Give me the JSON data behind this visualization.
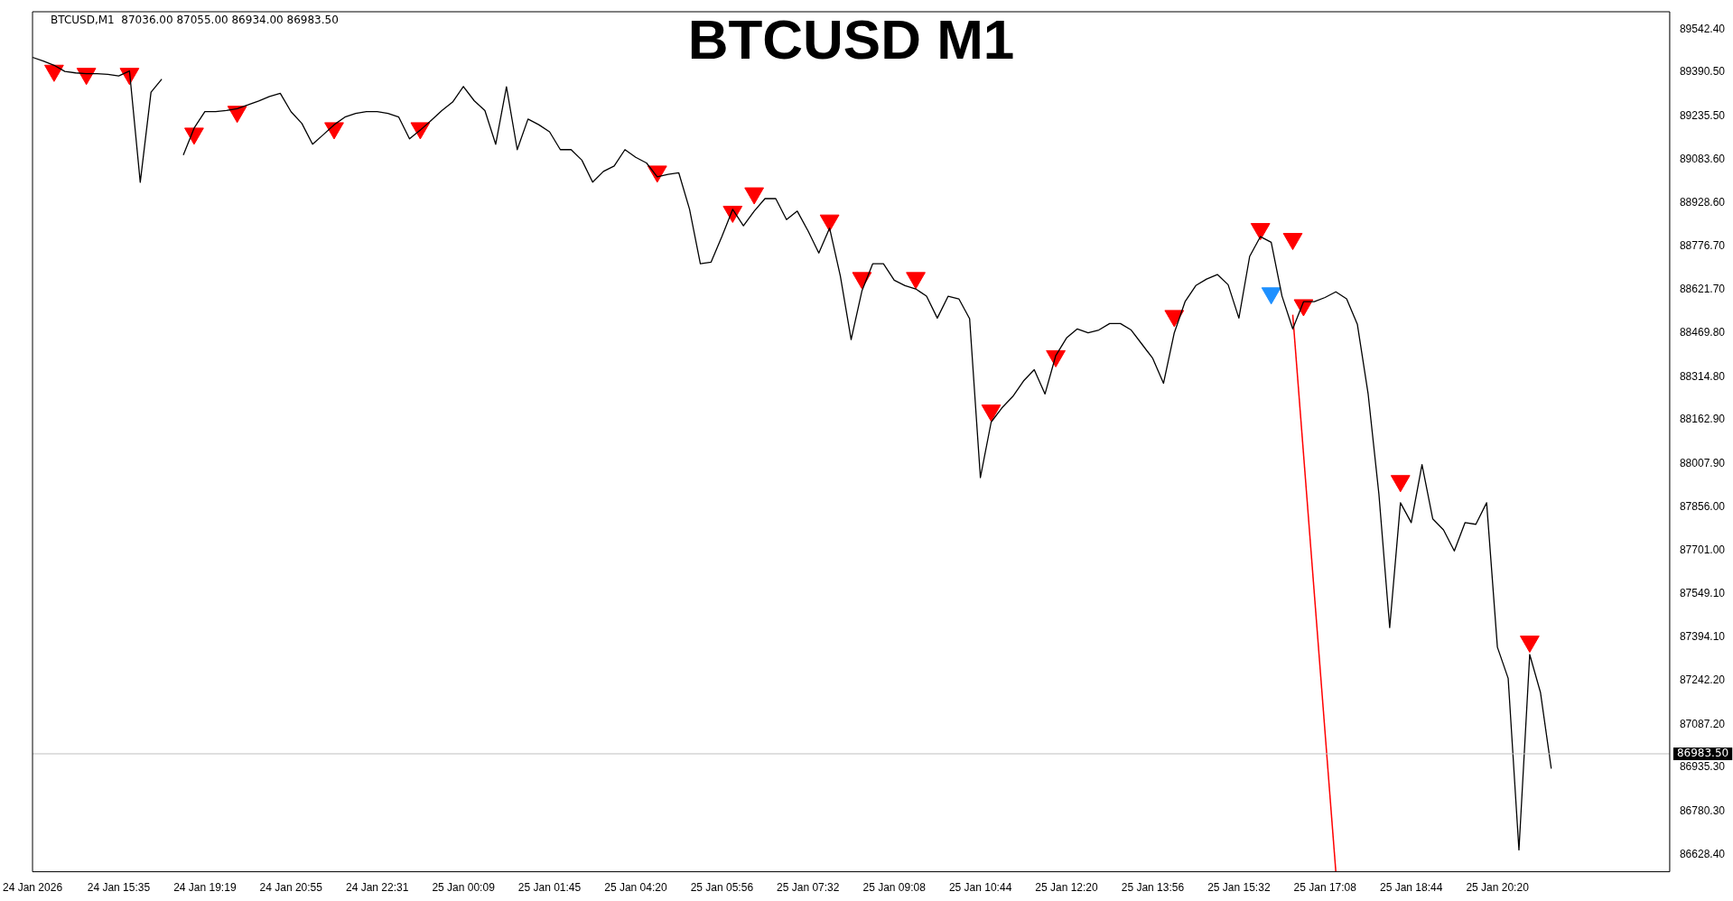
{
  "chart_data": {
    "type": "line",
    "title": "BTCUSD M1",
    "annotations": [
      "BTCUSD,M1  87036.00 87055.00 86934.00 86983.50"
    ],
    "categories": [
      "24 Jan 2026",
      null,
      null,
      null,
      null,
      null,
      null,
      null,
      "24 Jan 15:35",
      null,
      null,
      null,
      null,
      null,
      null,
      null,
      "24 Jan 19:19",
      null,
      null,
      null,
      null,
      null,
      null,
      null,
      "24 Jan 20:55",
      null,
      null,
      null,
      null,
      null,
      null,
      null,
      "24 Jan 22:31",
      null,
      null,
      null,
      null,
      null,
      null,
      null,
      "25 Jan 00:09",
      null,
      null,
      null,
      null,
      null,
      null,
      null,
      "25 Jan 01:45",
      null,
      null,
      null,
      null,
      null,
      null,
      null,
      "25 Jan 04:20",
      null,
      null,
      null,
      null,
      null,
      null,
      null,
      "25 Jan 05:56",
      null,
      null,
      null,
      null,
      null,
      null,
      null,
      "25 Jan 07:32",
      null,
      null,
      null,
      null,
      null,
      null,
      null,
      "25 Jan 09:08",
      null,
      null,
      null,
      null,
      null,
      null,
      null,
      "25 Jan 10:44",
      null,
      null,
      null,
      null,
      null,
      null,
      null,
      "25 Jan 12:20",
      null,
      null,
      null,
      null,
      null,
      null,
      null,
      "25 Jan 13:56",
      null,
      null,
      null,
      null,
      null,
      null,
      null,
      "25 Jan 15:32",
      null,
      null,
      null,
      null,
      null,
      null,
      null,
      "25 Jan 17:08",
      null,
      null,
      null,
      null,
      null,
      null,
      null,
      "25 Jan 18:44",
      null,
      null,
      null,
      null,
      null,
      null,
      null,
      "25 Jan 20:20",
      null,
      null,
      null,
      null,
      null,
      null,
      null,
      null,
      null,
      null,
      null,
      null,
      null,
      null,
      null,
      null
    ],
    "ylim": [
      86567,
      89604
    ],
    "yticks": [
      {
        "value": 89542.4,
        "label": "89542.40"
      },
      {
        "value": 89390.5,
        "label": "89390.50"
      },
      {
        "value": 89235.5,
        "label": "89235.50"
      },
      {
        "value": 89083.6,
        "label": "89083.60"
      },
      {
        "value": 88928.6,
        "label": "88928.60"
      },
      {
        "value": 88776.7,
        "label": "88776.70"
      },
      {
        "value": 88621.7,
        "label": "88621.70"
      },
      {
        "value": 88469.8,
        "label": "88469.80"
      },
      {
        "value": 88314.8,
        "label": "88314.80"
      },
      {
        "value": 88162.9,
        "label": "88162.90"
      },
      {
        "value": 88007.9,
        "label": "88007.90"
      },
      {
        "value": 87856,
        "label": "87856.00"
      },
      {
        "value": 87701,
        "label": "87701.00"
      },
      {
        "value": 87549.1,
        "label": "87549.10"
      },
      {
        "value": 87394.1,
        "label": "87394.10"
      },
      {
        "value": 87242.2,
        "label": "87242.20"
      },
      {
        "value": 87087.2,
        "label": "87087.20"
      },
      {
        "value": 86935.3,
        "label": "86935.30"
      },
      {
        "value": 86780.3,
        "label": "86780.30"
      },
      {
        "value": 86628.4,
        "label": "86628.40"
      }
    ],
    "grid": false,
    "legend": false,
    "ref_lines": [
      {
        "axis": "y",
        "value": 86983.5,
        "label": "86983.50",
        "color": "#c0c0c0"
      }
    ],
    "series": [
      {
        "color": "#000000",
        "values": [
          89443,
          89430,
          89415,
          89393,
          89388,
          89385,
          89385,
          89383,
          89377,
          89395,
          89002,
          89320,
          89366,
          null,
          89098,
          89193,
          89251,
          89251,
          89255,
          89262,
          89275,
          89289,
          89305,
          89316,
          89251,
          89210,
          89136,
          89170,
          89205,
          89232,
          89245,
          89251,
          89251,
          89245,
          89232,
          89155,
          89186,
          89220,
          89255,
          89285,
          89340,
          89290,
          89255,
          89136,
          89339,
          89117,
          89225,
          89205,
          89180,
          89117,
          89117,
          89080,
          89002,
          89040,
          89059,
          89117,
          89090,
          89070,
          89021,
          89030,
          89035,
          88906,
          88714,
          88720,
          88810,
          88906,
          88848,
          88900,
          88944,
          88944,
          88870,
          88900,
          88830,
          88752,
          88840,
          88670,
          88446,
          88618,
          88714,
          88714,
          88656,
          88637,
          88625,
          88600,
          88522,
          88599,
          88590,
          88520,
          87959,
          88155,
          88205,
          88245,
          88300,
          88340,
          88254,
          88390,
          88452,
          88484,
          88470,
          88480,
          88503,
          88503,
          88480,
          88430,
          88380,
          88292,
          88470,
          88580,
          88637,
          88660,
          88676,
          88640,
          88522,
          88740,
          88810,
          88790,
          88600,
          88484,
          88580,
          88580,
          88595,
          88615,
          88590,
          88500,
          88254,
          87900,
          87429,
          87870,
          87800,
          88005,
          87813,
          87774,
          87700,
          87800,
          87794,
          87870,
          87360,
          87250,
          86644,
          87334,
          87200,
          86931,
          null,
          null,
          null,
          null,
          null,
          null,
          null,
          null,
          null,
          null,
          null
        ]
      },
      {
        "type": "scatter",
        "marker": "triangle",
        "color": "#ff0000",
        "values": [
          null,
          null,
          89396,
          null,
          null,
          89385,
          null,
          null,
          null,
          89385,
          null,
          null,
          null,
          null,
          null,
          89174,
          null,
          null,
          null,
          89251,
          null,
          null,
          null,
          null,
          null,
          null,
          null,
          null,
          89193,
          null,
          null,
          null,
          null,
          null,
          null,
          null,
          89193,
          null,
          null,
          null,
          null,
          null,
          null,
          null,
          null,
          null,
          null,
          null,
          null,
          null,
          null,
          null,
          null,
          null,
          null,
          null,
          null,
          null,
          89040,
          null,
          null,
          null,
          null,
          null,
          null,
          88898,
          null,
          88963,
          null,
          null,
          null,
          null,
          null,
          null,
          88867,
          null,
          null,
          88664,
          null,
          null,
          null,
          null,
          88664,
          null,
          null,
          null,
          null,
          null,
          null,
          88196,
          null,
          null,
          null,
          null,
          null,
          88388,
          null,
          null,
          null,
          null,
          null,
          null,
          null,
          null,
          null,
          null,
          88530,
          null,
          null,
          null,
          null,
          null,
          null,
          null,
          88837,
          null,
          null,
          88802,
          88568,
          null,
          null,
          null,
          null,
          null,
          null,
          null,
          null,
          87947,
          null,
          null,
          null,
          null,
          null,
          null,
          null,
          null,
          null,
          null,
          null,
          87380,
          null,
          null,
          null,
          null,
          null,
          null,
          null,
          null,
          null,
          null,
          null,
          null,
          null
        ]
      },
      {
        "type": "scatter",
        "marker": "triangle",
        "color": "#1e90ff",
        "values": [
          null,
          null,
          null,
          null,
          null,
          null,
          null,
          null,
          null,
          null,
          null,
          null,
          null,
          null,
          null,
          null,
          null,
          null,
          null,
          null,
          null,
          null,
          null,
          null,
          null,
          null,
          null,
          null,
          null,
          null,
          null,
          null,
          null,
          null,
          null,
          null,
          null,
          null,
          null,
          null,
          null,
          null,
          null,
          null,
          null,
          null,
          null,
          null,
          null,
          null,
          null,
          null,
          null,
          null,
          null,
          null,
          null,
          null,
          null,
          null,
          null,
          null,
          null,
          null,
          null,
          null,
          null,
          null,
          null,
          null,
          null,
          null,
          null,
          null,
          null,
          null,
          null,
          null,
          null,
          null,
          null,
          null,
          null,
          null,
          null,
          null,
          null,
          null,
          null,
          null,
          null,
          null,
          null,
          null,
          null,
          null,
          null,
          null,
          null,
          null,
          null,
          null,
          null,
          null,
          null,
          null,
          null,
          null,
          null,
          null,
          null,
          null,
          null,
          null,
          null,
          88610,
          null,
          null,
          null,
          null,
          null,
          null,
          null,
          null,
          null,
          null,
          null,
          null,
          null,
          null,
          null,
          null,
          null,
          null,
          null,
          null,
          null,
          null,
          null,
          null,
          null,
          null,
          null,
          null,
          null,
          null,
          null,
          null,
          null,
          null,
          null,
          null,
          null
        ]
      },
      {
        "type": "line",
        "color": "#ff0000",
        "values": [
          null,
          null,
          null,
          null,
          null,
          null,
          null,
          null,
          null,
          null,
          null,
          null,
          null,
          null,
          null,
          null,
          null,
          null,
          null,
          null,
          null,
          null,
          null,
          null,
          null,
          null,
          null,
          null,
          null,
          null,
          null,
          null,
          null,
          null,
          null,
          null,
          null,
          null,
          null,
          null,
          null,
          null,
          null,
          null,
          null,
          null,
          null,
          null,
          null,
          null,
          null,
          null,
          null,
          null,
          null,
          null,
          null,
          null,
          null,
          null,
          null,
          null,
          null,
          null,
          null,
          null,
          null,
          null,
          null,
          null,
          null,
          null,
          null,
          null,
          null,
          null,
          null,
          null,
          null,
          null,
          null,
          null,
          null,
          null,
          null,
          null,
          null,
          null,
          null,
          null,
          null,
          null,
          null,
          null,
          null,
          null,
          null,
          null,
          null,
          null,
          null,
          null,
          null,
          null,
          null,
          null,
          null,
          null,
          null,
          null,
          null,
          null,
          null,
          null,
          null,
          null,
          null,
          88534,
          null,
          null,
          null,
          86567,
          null,
          null,
          null,
          null,
          null,
          null,
          null,
          null,
          null,
          null,
          null,
          null,
          null,
          null,
          null,
          null,
          null,
          null,
          null,
          null,
          null,
          null,
          null,
          null,
          null,
          null,
          null,
          null,
          null,
          null,
          null
        ]
      }
    ]
  }
}
